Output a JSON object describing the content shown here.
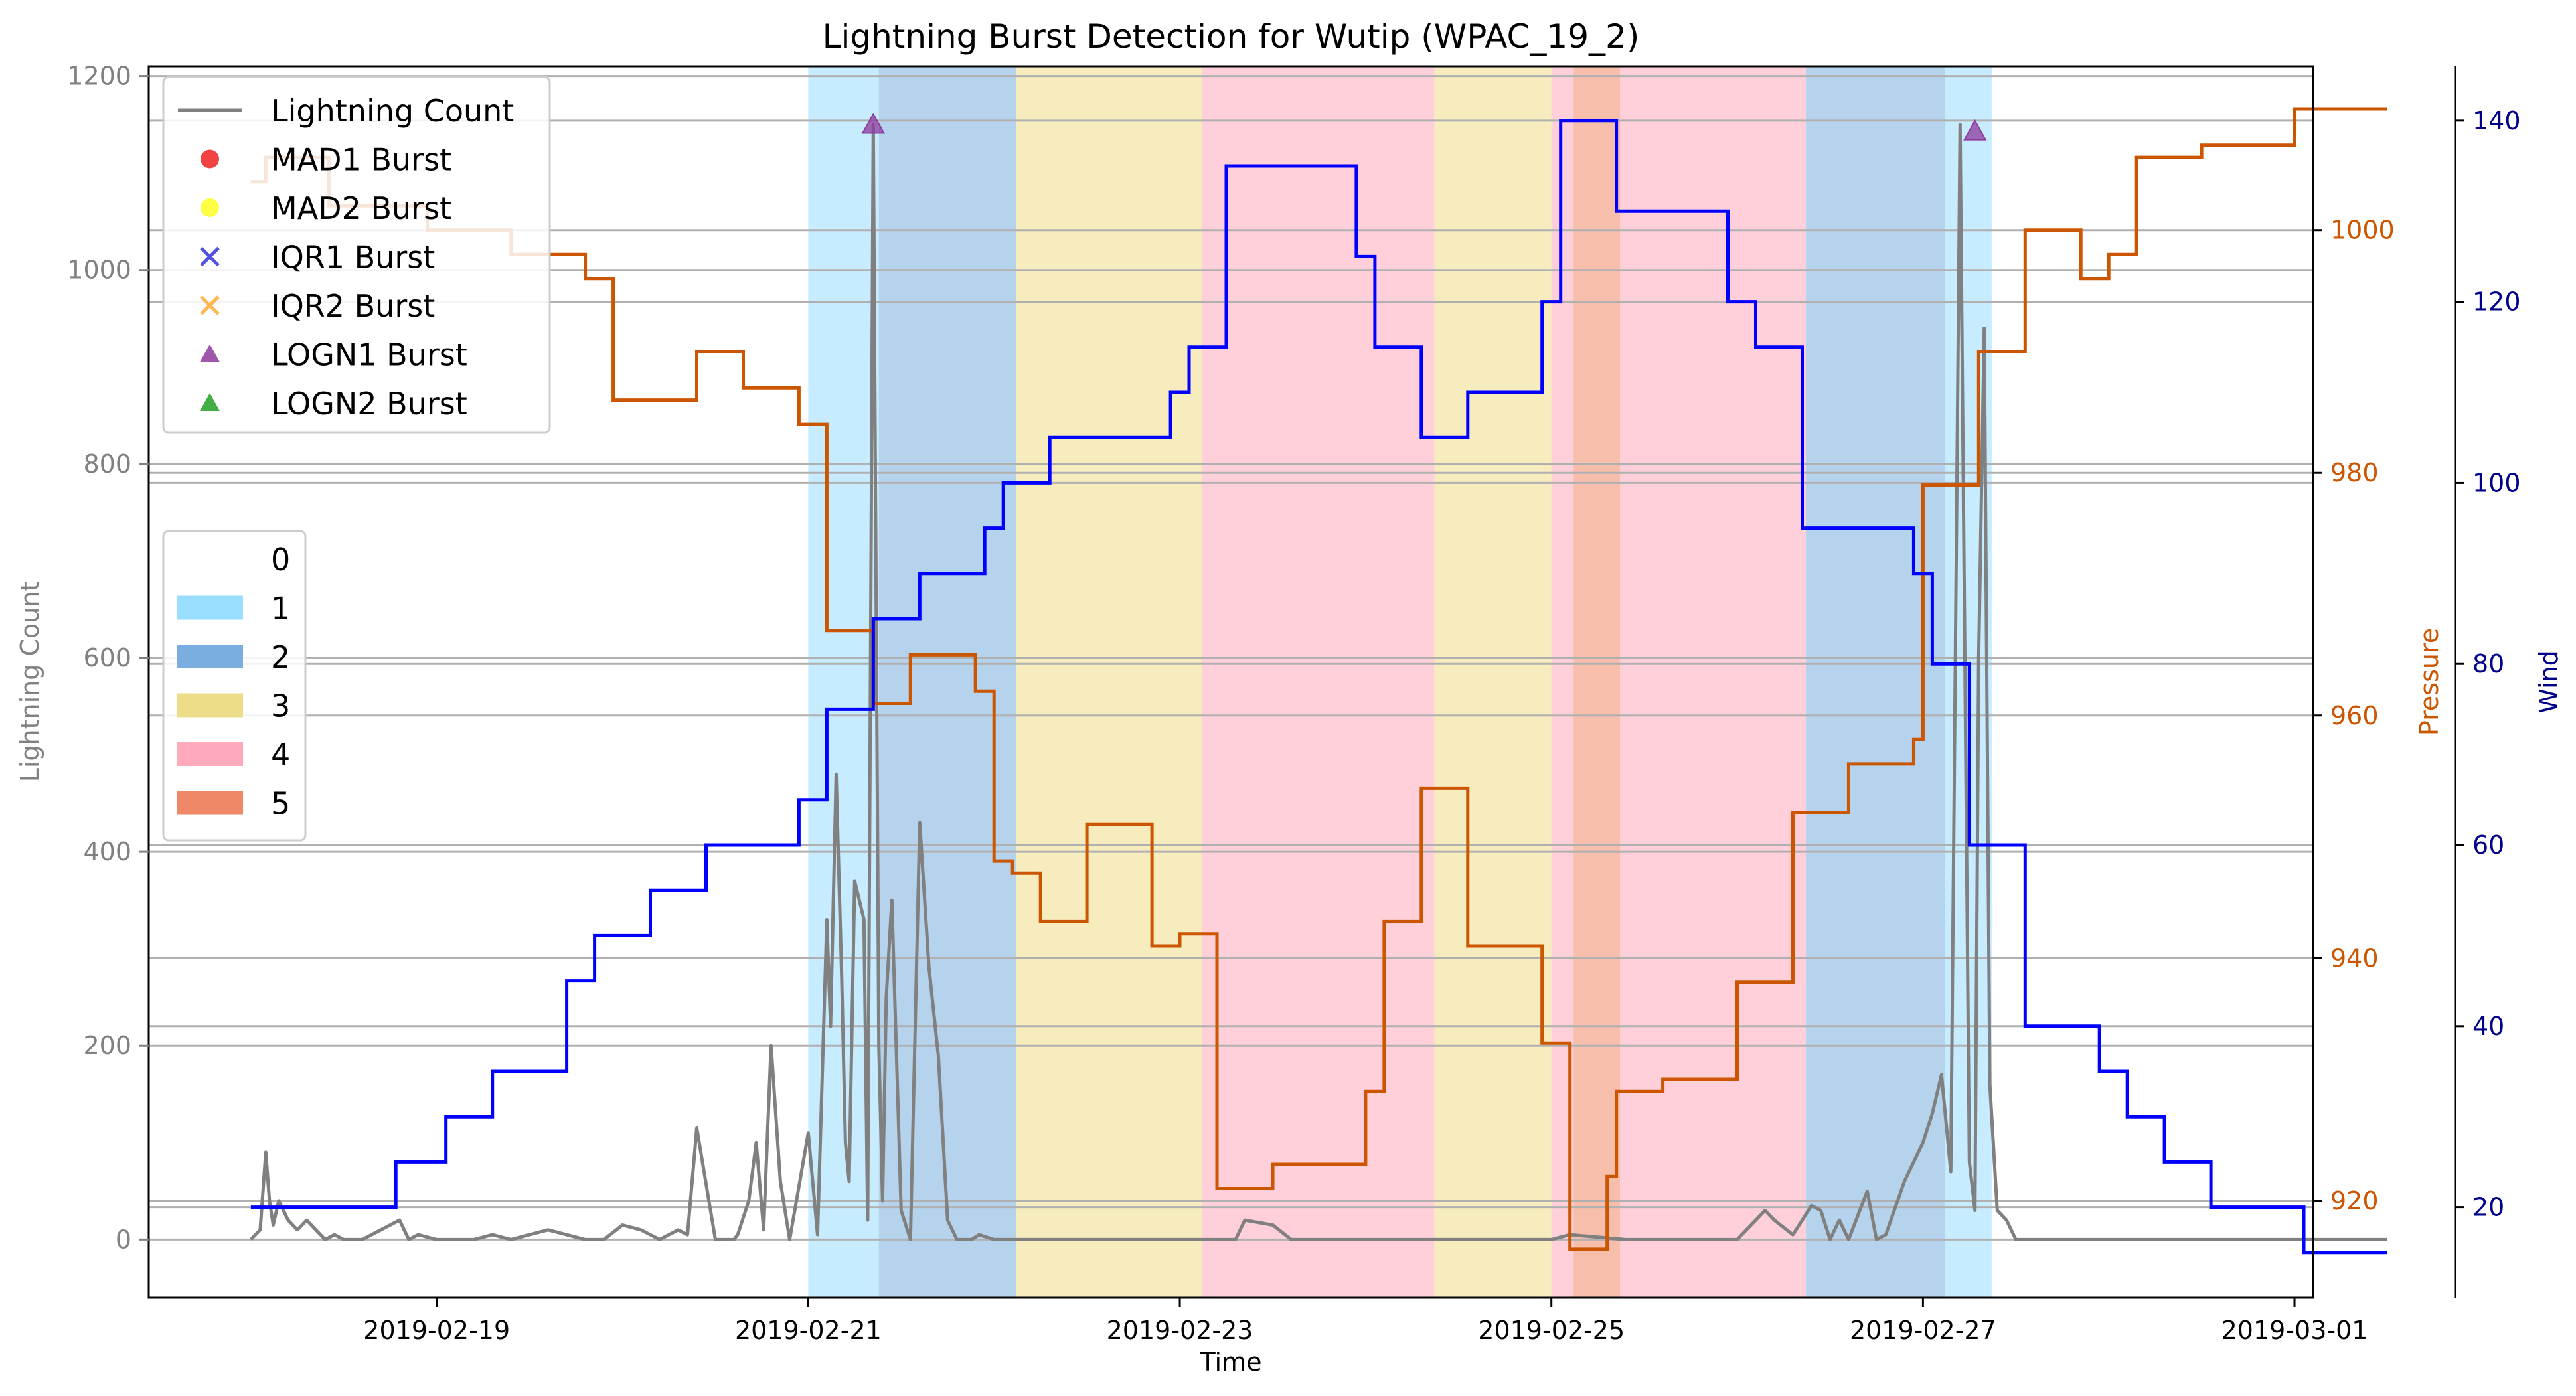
{
  "chart_data": {
    "type": "line",
    "title": "Lightning Burst Detection for Wutip (WPAC_19_2)",
    "xlabel": "Time",
    "ylabel_left": "Lightning Count",
    "ylabel_right1": "Pressure",
    "ylabel_right2": "Wind",
    "x_start": "2019-02-18",
    "xlim_days": [
      -0.55,
      11.1
    ],
    "x_ticks": [
      {
        "label": "2019-02-19",
        "day": 1
      },
      {
        "label": "2019-02-21",
        "day": 3
      },
      {
        "label": "2019-02-23",
        "day": 5
      },
      {
        "label": "2019-02-25",
        "day": 7
      },
      {
        "label": "2019-02-27",
        "day": 9
      },
      {
        "label": "2019-03-01",
        "day": 11
      }
    ],
    "ylim_left": [
      -60,
      1210
    ],
    "yticks_left": [
      0,
      200,
      400,
      600,
      800,
      1000,
      1200
    ],
    "ylim_pressure": [
      912,
      1013.5
    ],
    "yticks_pressure": [
      920,
      940,
      960,
      980,
      1000
    ],
    "ylim_wind": [
      10,
      146
    ],
    "yticks_wind": [
      20,
      40,
      60,
      80,
      100,
      120,
      140
    ],
    "grid": true,
    "colors": {
      "lightning": "#808080",
      "pressure": "#cc5500",
      "wind": "#0000ff",
      "cat1": "#99ddff",
      "cat2": "#7aaee0",
      "cat3": "#eedd88",
      "cat4": "#ffaabb",
      "cat5": "#ee8866",
      "grid": "#b0b0b0",
      "pressure_axis": "#cc5500",
      "wind_axis": "#00008b"
    },
    "category_spans": [
      {
        "cat": 1,
        "start_day": 3.0,
        "end_day": 3.38
      },
      {
        "cat": 2,
        "start_day": 3.38,
        "end_day": 4.12
      },
      {
        "cat": 3,
        "start_day": 4.12,
        "end_day": 5.12
      },
      {
        "cat": 4,
        "start_day": 5.12,
        "end_day": 6.37
      },
      {
        "cat": 3,
        "start_day": 6.37,
        "end_day": 7.0
      },
      {
        "cat": 4,
        "start_day": 7.0,
        "end_day": 7.12
      },
      {
        "cat": 5,
        "start_day": 7.12,
        "end_day": 7.37
      },
      {
        "cat": 4,
        "start_day": 7.37,
        "end_day": 8.37
      },
      {
        "cat": 2,
        "start_day": 8.37,
        "end_day": 9.12
      },
      {
        "cat": 1,
        "start_day": 9.12,
        "end_day": 9.37
      }
    ],
    "series": [
      {
        "name": "Lightning Count",
        "axis": "left",
        "x_days": [
          0.0,
          0.05,
          0.08,
          0.1,
          0.12,
          0.15,
          0.2,
          0.25,
          0.3,
          0.35,
          0.4,
          0.45,
          0.5,
          0.6,
          0.8,
          0.85,
          0.9,
          1.0,
          1.2,
          1.3,
          1.4,
          1.5,
          1.6,
          1.8,
          1.9,
          2.0,
          2.1,
          2.2,
          2.3,
          2.35,
          2.4,
          2.5,
          2.6,
          2.62,
          2.68,
          2.72,
          2.76,
          2.8,
          2.85,
          2.9,
          3.0,
          3.05,
          3.1,
          3.12,
          3.15,
          3.18,
          3.2,
          3.22,
          3.25,
          3.3,
          3.32,
          3.35,
          3.38,
          3.4,
          3.42,
          3.45,
          3.5,
          3.55,
          3.6,
          3.65,
          3.7,
          3.75,
          3.8,
          3.85,
          3.88,
          3.92,
          4.0,
          4.1,
          4.3,
          4.6,
          5.0,
          5.3,
          5.35,
          5.5,
          5.6,
          6.0,
          7.0,
          7.1,
          7.4,
          7.6,
          8.0,
          8.15,
          8.2,
          8.3,
          8.4,
          8.45,
          8.5,
          8.55,
          8.6,
          8.7,
          8.75,
          8.8,
          8.9,
          9.0,
          9.05,
          9.1,
          9.15,
          9.2,
          9.25,
          9.28,
          9.3,
          9.33,
          9.36,
          9.4,
          9.45,
          9.5,
          9.6,
          10.0,
          10.5,
          11.0,
          11.5
        ],
        "values": [
          0,
          10,
          90,
          40,
          15,
          40,
          20,
          10,
          20,
          10,
          0,
          5,
          0,
          0,
          20,
          0,
          5,
          0,
          0,
          5,
          0,
          5,
          10,
          0,
          0,
          15,
          10,
          0,
          10,
          5,
          115,
          0,
          0,
          5,
          40,
          100,
          10,
          200,
          60,
          0,
          110,
          5,
          330,
          220,
          480,
          270,
          100,
          60,
          370,
          330,
          20,
          1150,
          200,
          40,
          250,
          350,
          30,
          0,
          430,
          280,
          190,
          20,
          0,
          0,
          0,
          5,
          0,
          0,
          0,
          0,
          0,
          0,
          20,
          15,
          0,
          0,
          0,
          5,
          0,
          0,
          0,
          30,
          20,
          5,
          35,
          30,
          0,
          20,
          0,
          50,
          0,
          5,
          60,
          100,
          130,
          170,
          70,
          1150,
          80,
          30,
          600,
          940,
          160,
          30,
          20,
          0,
          0,
          0,
          0,
          0,
          0
        ]
      },
      {
        "name": "Pressure",
        "axis": "pressure",
        "steps": [
          [
            0.0,
            1004
          ],
          [
            0.08,
            1006
          ],
          [
            0.42,
            1002
          ],
          [
            0.95,
            1000
          ],
          [
            1.4,
            998
          ],
          [
            1.8,
            996
          ],
          [
            1.95,
            986
          ],
          [
            2.4,
            990
          ],
          [
            2.65,
            987
          ],
          [
            2.95,
            984
          ],
          [
            3.1,
            967
          ],
          [
            3.35,
            961
          ],
          [
            3.55,
            965
          ],
          [
            3.9,
            962
          ],
          [
            4.0,
            948
          ],
          [
            4.1,
            947
          ],
          [
            4.25,
            943
          ],
          [
            4.5,
            951
          ],
          [
            4.85,
            941
          ],
          [
            5.0,
            942
          ],
          [
            5.2,
            921
          ],
          [
            5.5,
            923
          ],
          [
            6.0,
            929
          ],
          [
            6.1,
            943
          ],
          [
            6.3,
            954
          ],
          [
            6.55,
            941
          ],
          [
            6.95,
            933
          ],
          [
            7.1,
            916
          ],
          [
            7.3,
            922
          ],
          [
            7.35,
            929
          ],
          [
            7.6,
            930
          ],
          [
            8.0,
            938
          ],
          [
            8.3,
            952
          ],
          [
            8.6,
            956
          ],
          [
            8.95,
            958
          ],
          [
            9.0,
            979
          ],
          [
            9.3,
            990
          ],
          [
            9.55,
            1000
          ],
          [
            9.85,
            996
          ],
          [
            10.0,
            998
          ],
          [
            10.15,
            1006
          ],
          [
            10.5,
            1007
          ],
          [
            11.0,
            1010
          ],
          [
            11.5,
            1010
          ]
        ]
      },
      {
        "name": "Wind",
        "axis": "wind",
        "steps": [
          [
            0.0,
            20
          ],
          [
            0.78,
            25
          ],
          [
            1.05,
            30
          ],
          [
            1.3,
            35
          ],
          [
            1.7,
            45
          ],
          [
            1.85,
            50
          ],
          [
            2.15,
            55
          ],
          [
            2.45,
            60
          ],
          [
            2.95,
            65
          ],
          [
            3.1,
            75
          ],
          [
            3.35,
            85
          ],
          [
            3.6,
            90
          ],
          [
            3.95,
            95
          ],
          [
            4.05,
            100
          ],
          [
            4.3,
            105
          ],
          [
            4.95,
            110
          ],
          [
            5.05,
            115
          ],
          [
            5.25,
            135
          ],
          [
            5.95,
            125
          ],
          [
            6.05,
            115
          ],
          [
            6.3,
            105
          ],
          [
            6.55,
            110
          ],
          [
            6.95,
            120
          ],
          [
            7.05,
            140
          ],
          [
            7.35,
            130
          ],
          [
            7.95,
            120
          ],
          [
            8.1,
            115
          ],
          [
            8.35,
            95
          ],
          [
            8.95,
            90
          ],
          [
            9.05,
            80
          ],
          [
            9.25,
            60
          ],
          [
            9.55,
            40
          ],
          [
            9.95,
            35
          ],
          [
            10.1,
            30
          ],
          [
            10.3,
            25
          ],
          [
            10.55,
            20
          ],
          [
            11.05,
            15
          ],
          [
            11.5,
            15
          ]
        ]
      }
    ],
    "burst_markers": [
      {
        "series": "LOGN1 Burst",
        "x_day": 3.35,
        "value": 1150
      },
      {
        "series": "LOGN1 Burst",
        "x_day": 9.28,
        "value": 1143
      }
    ],
    "legend_top": {
      "placement": "upper-left",
      "entries": [
        {
          "label": "Lightning Count",
          "marker": "line",
          "color": "#808080"
        },
        {
          "label": "MAD1 Burst",
          "marker": "circle",
          "color": "#ee2222"
        },
        {
          "label": "MAD2 Burst",
          "marker": "circle",
          "color": "#ffff22"
        },
        {
          "label": "IQR1 Burst",
          "marker": "x",
          "color": "#3333dd"
        },
        {
          "label": "IQR2 Burst",
          "marker": "x",
          "color": "#ffaa33"
        },
        {
          "label": "LOGN1 Burst",
          "marker": "triangle",
          "color": "#8e3a9e"
        },
        {
          "label": "LOGN2 Burst",
          "marker": "triangle",
          "color": "#22a022"
        }
      ]
    },
    "legend_categories": {
      "placement": "center-left",
      "entries": [
        {
          "label": "0",
          "color": "#ffffff"
        },
        {
          "label": "1",
          "color": "#99ddff"
        },
        {
          "label": "2",
          "color": "#7aaee0"
        },
        {
          "label": "3",
          "color": "#eedd88"
        },
        {
          "label": "4",
          "color": "#ffaabb"
        },
        {
          "label": "5",
          "color": "#ee8866"
        }
      ]
    }
  }
}
